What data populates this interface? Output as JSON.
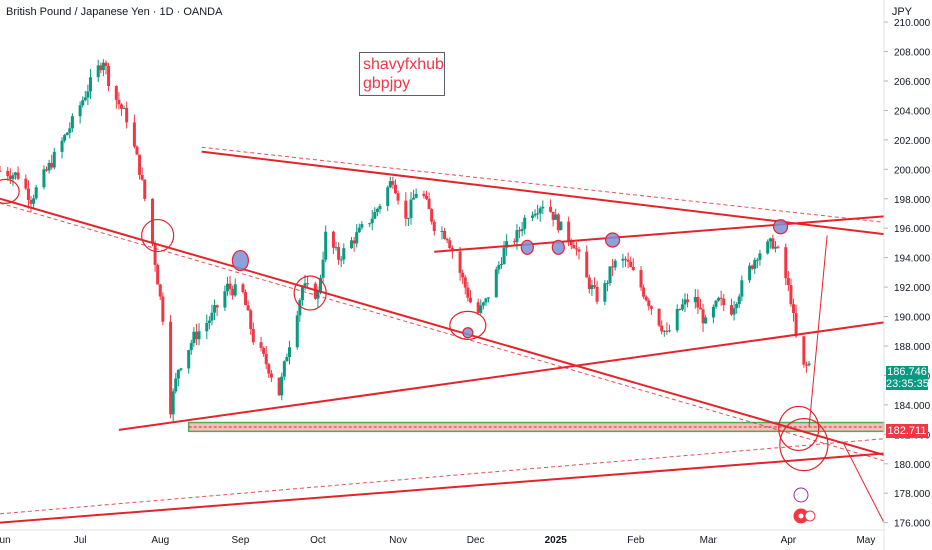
{
  "header": {
    "symbol_title": "British Pound / Japanese Yen · 1D · OANDA",
    "currency": "JPY"
  },
  "annotation": {
    "line1": "shavyfxhub",
    "line2": "gbpjpy"
  },
  "price_tags": {
    "last_price": "186.746",
    "countdown": "23:35:35",
    "level_price": "182.711"
  },
  "colors": {
    "up": "#089981",
    "down": "#f23645",
    "drawing": "#e3242b",
    "zone_fill": "#f7a8a8",
    "zone_border": "#4caf50",
    "circle_fill": "#7b8fd4"
  },
  "chart_data": {
    "type": "candlestick",
    "title": "British Pound / Japanese Yen · 1D · OANDA",
    "y_axis": {
      "min": 175.5,
      "max": 211.5,
      "ticks": [
        176,
        178,
        180,
        182,
        184,
        186,
        188,
        190,
        192,
        194,
        196,
        198,
        200,
        202,
        204,
        206,
        208,
        210
      ],
      "tick_labels": [
        "176.000",
        "178.000",
        "180.000",
        "182.000",
        "184.000",
        "186.000",
        "188.000",
        "190.000",
        "192.000",
        "194.000",
        "196.000",
        "198.000",
        "200.000",
        "202.000",
        "204.000",
        "206.000",
        "208.000",
        "210.000"
      ],
      "currency": "JPY"
    },
    "x_axis": {
      "start": "2024-05-31",
      "end": "2025-05-08",
      "tick_labels": [
        {
          "date": "2024-06-01",
          "label": "Jun"
        },
        {
          "date": "2024-07-01",
          "label": "Jul"
        },
        {
          "date": "2024-08-01",
          "label": "Aug"
        },
        {
          "date": "2024-09-01",
          "label": "Sep"
        },
        {
          "date": "2024-10-01",
          "label": "Oct"
        },
        {
          "date": "2024-11-01",
          "label": "Nov"
        },
        {
          "date": "2024-12-01",
          "label": "Dec"
        },
        {
          "date": "2025-01-01",
          "label": "2025"
        },
        {
          "date": "2025-02-01",
          "label": "Feb"
        },
        {
          "date": "2025-03-01",
          "label": "Mar"
        },
        {
          "date": "2025-04-01",
          "label": "Apr"
        },
        {
          "date": "2025-05-01",
          "label": "May"
        }
      ]
    },
    "price_anchors": [
      [
        "2024-05-31",
        199.9
      ],
      [
        "2024-06-07",
        199.6
      ],
      [
        "2024-06-12",
        198.0
      ],
      [
        "2024-06-20",
        200.5
      ],
      [
        "2024-06-28",
        203.2
      ],
      [
        "2024-07-04",
        205.5
      ],
      [
        "2024-07-10",
        207.5
      ],
      [
        "2024-07-13",
        205.4
      ],
      [
        "2024-07-19",
        203.5
      ],
      [
        "2024-07-24",
        200.0
      ],
      [
        "2024-07-29",
        195.0
      ],
      [
        "2024-08-02",
        190.0
      ],
      [
        "2024-08-05",
        183.8
      ],
      [
        "2024-08-08",
        186.5
      ],
      [
        "2024-08-14",
        188.6
      ],
      [
        "2024-08-21",
        190.0
      ],
      [
        "2024-08-27",
        192.0
      ],
      [
        "2024-09-02",
        191.5
      ],
      [
        "2024-09-06",
        188.5
      ],
      [
        "2024-09-12",
        186.5
      ],
      [
        "2024-09-16",
        184.8
      ],
      [
        "2024-09-19",
        187.5
      ],
      [
        "2024-09-25",
        192.0
      ],
      [
        "2024-10-01",
        191.5
      ],
      [
        "2024-10-04",
        195.5
      ],
      [
        "2024-10-09",
        194.0
      ],
      [
        "2024-10-16",
        195.5
      ],
      [
        "2024-10-23",
        197.0
      ],
      [
        "2024-10-30",
        199.4
      ],
      [
        "2024-11-04",
        196.5
      ],
      [
        "2024-11-09",
        199.0
      ],
      [
        "2024-11-15",
        196.2
      ],
      [
        "2024-11-20",
        195.5
      ],
      [
        "2024-11-26",
        192.5
      ],
      [
        "2024-12-01",
        190.0
      ],
      [
        "2024-12-05",
        191.0
      ],
      [
        "2024-12-12",
        194.5
      ],
      [
        "2024-12-17",
        195.5
      ],
      [
        "2024-12-21",
        197.0
      ],
      [
        "2024-12-28",
        197.8
      ],
      [
        "2025-01-03",
        196.0
      ],
      [
        "2025-01-08",
        195.0
      ],
      [
        "2025-01-13",
        192.5
      ],
      [
        "2025-01-18",
        191.0
      ],
      [
        "2025-01-23",
        193.5
      ],
      [
        "2025-01-28",
        193.8
      ],
      [
        "2025-02-03",
        192.0
      ],
      [
        "2025-02-09",
        190.0
      ],
      [
        "2025-02-13",
        188.7
      ],
      [
        "2025-02-18",
        190.5
      ],
      [
        "2025-02-23",
        191.5
      ],
      [
        "2025-02-28",
        189.5
      ],
      [
        "2025-03-05",
        191.0
      ],
      [
        "2025-03-10",
        190.5
      ],
      [
        "2025-03-15",
        192.5
      ],
      [
        "2025-03-20",
        194.3
      ],
      [
        "2025-03-26",
        195.0
      ],
      [
        "2025-03-29",
        194.0
      ],
      [
        "2025-04-02",
        191.2
      ],
      [
        "2025-04-04",
        188.5
      ],
      [
        "2025-04-07",
        186.5
      ],
      [
        "2025-04-09",
        186.746
      ]
    ],
    "drawings": [
      {
        "name": "upper-descending-resistance",
        "from": [
          "2024-08-17",
          201.2
        ],
        "to": [
          "2025-05-08",
          195.6
        ]
      },
      {
        "name": "upper-resistance-dashed",
        "from": [
          "2024-08-17",
          201.5
        ],
        "to": [
          "2025-05-08",
          196.4
        ]
      },
      {
        "name": "long-descending-trendline",
        "from": [
          "2024-05-31",
          198.0
        ],
        "to": [
          "2025-05-08",
          180.6
        ]
      },
      {
        "name": "long-descending-trendline-dashed",
        "from": [
          "2024-05-31",
          197.7
        ],
        "to": [
          "2025-05-08",
          180.2
        ]
      },
      {
        "name": "rising-channel-top",
        "from": [
          "2024-11-15",
          194.4
        ],
        "to": [
          "2025-05-08",
          196.8
        ]
      },
      {
        "name": "rising-channel-bottom",
        "from": [
          "2024-07-16",
          182.3
        ],
        "to": [
          "2025-05-08",
          189.6
        ]
      },
      {
        "name": "long-rising-support",
        "from": [
          "2024-05-31",
          176.0
        ],
        "to": [
          "2025-05-08",
          180.7
        ]
      },
      {
        "name": "long-rising-support-dashed",
        "from": [
          "2024-05-31",
          176.6
        ],
        "to": [
          "2025-05-08",
          181.7
        ]
      }
    ],
    "zone": {
      "from": "2024-08-12",
      "to": "2025-05-08",
      "low": 182.2,
      "high": 182.8
    },
    "current_price": 186.746,
    "level_price": 182.711
  }
}
